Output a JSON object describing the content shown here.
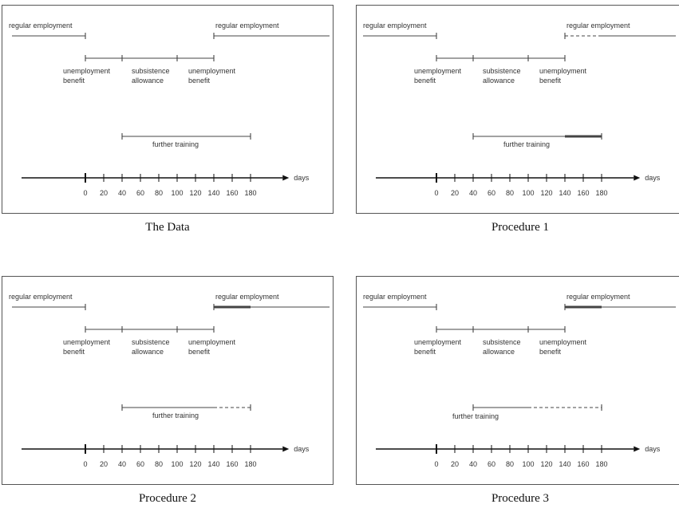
{
  "labels": {
    "regular_employment": "regular employment",
    "unemployment": "unemployment",
    "benefit": "benefit",
    "subsistence": "subsistence",
    "allowance": "allowance",
    "further_training": "further training",
    "days": "days"
  },
  "axis_ticks": [
    "0",
    "20",
    "40",
    "60",
    "80",
    "100",
    "120",
    "140",
    "160",
    "180"
  ],
  "panels": [
    {
      "caption": "The Data",
      "segments": [
        {
          "from": -80,
          "to": 0,
          "row": "employment",
          "style": "solid",
          "left_cap": false,
          "right_cap": true
        },
        {
          "from": 140,
          "to": 270,
          "row": "employment",
          "style": "solid",
          "left_cap": true,
          "right_cap": false
        },
        {
          "from": 0,
          "to": 140,
          "row": "benefits",
          "style": "solid",
          "left_cap": true,
          "right_cap": true,
          "mids": [
            40,
            100
          ]
        },
        {
          "from": 40,
          "to": 180,
          "row": "training",
          "style": "solid",
          "left_cap": true,
          "right_cap": true
        }
      ]
    },
    {
      "caption": "Procedure 1",
      "segments": [
        {
          "from": -80,
          "to": 0,
          "row": "employment",
          "style": "solid",
          "left_cap": false,
          "right_cap": true
        },
        {
          "from": 140,
          "to": 180,
          "row": "employment",
          "style": "dashed",
          "left_cap": true,
          "right_cap": false
        },
        {
          "from": 180,
          "to": 270,
          "row": "employment",
          "style": "solid",
          "left_cap": false,
          "right_cap": false
        },
        {
          "from": 0,
          "to": 140,
          "row": "benefits",
          "style": "solid",
          "left_cap": true,
          "right_cap": true,
          "mids": [
            40,
            100
          ]
        },
        {
          "from": 40,
          "to": 140,
          "row": "training",
          "style": "solid",
          "left_cap": true,
          "right_cap": false
        },
        {
          "from": 140,
          "to": 180,
          "row": "training",
          "style": "bold",
          "left_cap": false,
          "right_cap": true
        }
      ]
    },
    {
      "caption": "Procedure 2",
      "segments": [
        {
          "from": -80,
          "to": 0,
          "row": "employment",
          "style": "solid",
          "left_cap": false,
          "right_cap": true
        },
        {
          "from": 140,
          "to": 180,
          "row": "employment",
          "style": "bold",
          "left_cap": true,
          "right_cap": false
        },
        {
          "from": 180,
          "to": 270,
          "row": "employment",
          "style": "solid",
          "left_cap": false,
          "right_cap": false
        },
        {
          "from": 0,
          "to": 140,
          "row": "benefits",
          "style": "solid",
          "left_cap": true,
          "right_cap": true,
          "mids": [
            40,
            100
          ]
        },
        {
          "from": 40,
          "to": 140,
          "row": "training",
          "style": "solid",
          "left_cap": true,
          "right_cap": false
        },
        {
          "from": 140,
          "to": 180,
          "row": "training",
          "style": "dashed",
          "left_cap": false,
          "right_cap": true
        }
      ]
    },
    {
      "caption": "Procedure 3",
      "segments": [
        {
          "from": -80,
          "to": 0,
          "row": "employment",
          "style": "solid",
          "left_cap": false,
          "right_cap": true
        },
        {
          "from": 140,
          "to": 180,
          "row": "employment",
          "style": "bold",
          "left_cap": true,
          "right_cap": false
        },
        {
          "from": 180,
          "to": 270,
          "row": "employment",
          "style": "solid",
          "left_cap": false,
          "right_cap": false
        },
        {
          "from": 0,
          "to": 140,
          "row": "benefits",
          "style": "solid",
          "left_cap": true,
          "right_cap": true,
          "mids": [
            40,
            100
          ]
        },
        {
          "from": 40,
          "to": 100,
          "row": "training",
          "style": "solid",
          "left_cap": true,
          "right_cap": false
        },
        {
          "from": 100,
          "to": 180,
          "row": "training",
          "style": "dashed",
          "left_cap": false,
          "right_cap": true
        }
      ]
    }
  ]
}
